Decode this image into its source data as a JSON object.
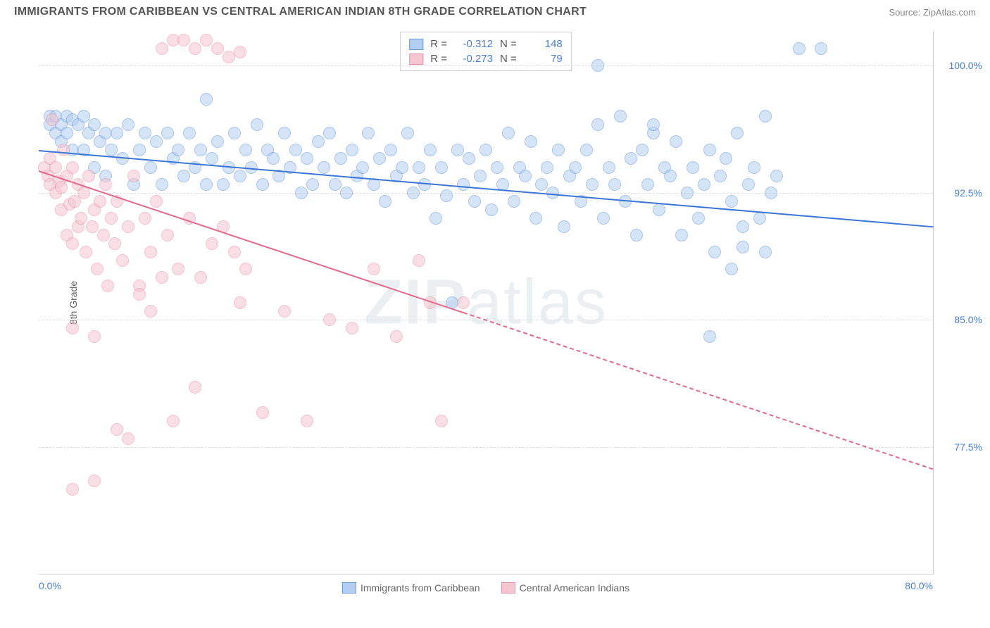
{
  "header": {
    "title": "IMMIGRANTS FROM CARIBBEAN VS CENTRAL AMERICAN INDIAN 8TH GRADE CORRELATION CHART",
    "source": "Source: ZipAtlas.com"
  },
  "chart": {
    "type": "scatter",
    "y_axis_label": "8th Grade",
    "xlim": [
      0,
      80
    ],
    "ylim": [
      70,
      102
    ],
    "x_ticks": [
      {
        "value": 0,
        "label": "0.0%"
      },
      {
        "value": 80,
        "label": "80.0%"
      }
    ],
    "y_ticks": [
      {
        "value": 100,
        "label": "100.0%"
      },
      {
        "value": 92.5,
        "label": "92.5%"
      },
      {
        "value": 85,
        "label": "85.0%"
      },
      {
        "value": 77.5,
        "label": "77.5%"
      }
    ],
    "grid_color": "#dddddd",
    "background_color": "#ffffff",
    "series": [
      {
        "name": "Immigrants from Caribbean",
        "color_fill": "#b3cef0",
        "color_stroke": "#6699dd",
        "trend_color": "#3b76d6",
        "trend_start": {
          "x": 0,
          "y": 95.0
        },
        "trend_end": {
          "x": 80,
          "y": 90.5
        },
        "trend_dashed_after_x": null,
        "stats": {
          "R": "-0.312",
          "N": "148"
        },
        "points": [
          [
            1,
            97
          ],
          [
            1,
            96.5
          ],
          [
            1.5,
            97
          ],
          [
            1.5,
            96
          ],
          [
            2,
            96.5
          ],
          [
            2,
            95.5
          ],
          [
            2.5,
            97
          ],
          [
            2.5,
            96
          ],
          [
            3,
            96.8
          ],
          [
            3,
            95
          ],
          [
            3.5,
            96.5
          ],
          [
            4,
            97
          ],
          [
            4,
            95
          ],
          [
            4.5,
            96
          ],
          [
            5,
            96.5
          ],
          [
            5,
            94
          ],
          [
            5.5,
            95.5
          ],
          [
            6,
            96
          ],
          [
            6,
            93.5
          ],
          [
            6.5,
            95
          ],
          [
            7,
            96
          ],
          [
            7.5,
            94.5
          ],
          [
            8,
            96.5
          ],
          [
            8.5,
            93
          ],
          [
            9,
            95
          ],
          [
            9.5,
            96
          ],
          [
            10,
            94
          ],
          [
            10.5,
            95.5
          ],
          [
            11,
            93
          ],
          [
            11.5,
            96
          ],
          [
            12,
            94.5
          ],
          [
            12.5,
            95
          ],
          [
            13,
            93.5
          ],
          [
            13.5,
            96
          ],
          [
            14,
            94
          ],
          [
            14.5,
            95
          ],
          [
            15,
            98
          ],
          [
            15,
            93
          ],
          [
            15.5,
            94.5
          ],
          [
            16,
            95.5
          ],
          [
            16.5,
            93
          ],
          [
            17,
            94
          ],
          [
            17.5,
            96
          ],
          [
            18,
            93.5
          ],
          [
            18.5,
            95
          ],
          [
            19,
            94
          ],
          [
            19.5,
            96.5
          ],
          [
            20,
            93
          ],
          [
            20.5,
            95
          ],
          [
            21,
            94.5
          ],
          [
            21.5,
            93.5
          ],
          [
            22,
            96
          ],
          [
            22.5,
            94
          ],
          [
            23,
            95
          ],
          [
            23.5,
            92.5
          ],
          [
            24,
            94.5
          ],
          [
            24.5,
            93
          ],
          [
            25,
            95.5
          ],
          [
            25.5,
            94
          ],
          [
            26,
            96
          ],
          [
            26.5,
            93
          ],
          [
            27,
            94.5
          ],
          [
            27.5,
            92.5
          ],
          [
            28,
            95
          ],
          [
            28.5,
            93.5
          ],
          [
            29,
            94
          ],
          [
            29.5,
            96
          ],
          [
            30,
            93
          ],
          [
            30.5,
            94.5
          ],
          [
            31,
            92
          ],
          [
            31.5,
            95
          ],
          [
            32,
            93.5
          ],
          [
            32.5,
            94
          ],
          [
            33,
            96
          ],
          [
            33.5,
            92.5
          ],
          [
            34,
            94
          ],
          [
            34.5,
            93
          ],
          [
            35,
            95
          ],
          [
            35.5,
            91
          ],
          [
            36,
            94
          ],
          [
            36.5,
            92.3
          ],
          [
            37,
            86
          ],
          [
            37.5,
            95
          ],
          [
            38,
            93
          ],
          [
            38.5,
            94.5
          ],
          [
            39,
            92
          ],
          [
            39.5,
            93.5
          ],
          [
            40,
            95
          ],
          [
            40.5,
            91.5
          ],
          [
            41,
            94
          ],
          [
            41.5,
            93
          ],
          [
            42,
            96
          ],
          [
            42.5,
            92
          ],
          [
            43,
            94
          ],
          [
            43.5,
            93.5
          ],
          [
            44,
            95.5
          ],
          [
            44.5,
            91
          ],
          [
            45,
            93
          ],
          [
            45.5,
            94
          ],
          [
            46,
            92.5
          ],
          [
            46.5,
            95
          ],
          [
            47,
            90.5
          ],
          [
            47.5,
            93.5
          ],
          [
            48,
            94
          ],
          [
            48.5,
            92
          ],
          [
            49,
            95
          ],
          [
            49.5,
            93
          ],
          [
            50,
            96.5
          ],
          [
            50.5,
            91
          ],
          [
            51,
            94
          ],
          [
            51.5,
            93
          ],
          [
            52,
            97
          ],
          [
            52.5,
            92
          ],
          [
            53,
            94.5
          ],
          [
            53.5,
            90
          ],
          [
            54,
            95
          ],
          [
            54.5,
            93
          ],
          [
            55,
            96
          ],
          [
            55.5,
            91.5
          ],
          [
            56,
            94
          ],
          [
            56.5,
            93.5
          ],
          [
            57,
            95.5
          ],
          [
            57.5,
            90
          ],
          [
            58,
            92.5
          ],
          [
            58.5,
            94
          ],
          [
            59,
            91
          ],
          [
            59.5,
            93
          ],
          [
            60,
            95
          ],
          [
            60.5,
            89
          ],
          [
            61,
            93.5
          ],
          [
            61.5,
            94.5
          ],
          [
            62,
            92
          ],
          [
            62.5,
            96
          ],
          [
            63,
            90.5
          ],
          [
            63.5,
            93
          ],
          [
            64,
            94
          ],
          [
            64.5,
            91
          ],
          [
            65,
            97
          ],
          [
            65.5,
            92.5
          ],
          [
            66,
            93.5
          ],
          [
            68,
            101
          ],
          [
            70,
            101
          ],
          [
            60,
            84
          ],
          [
            62,
            88
          ],
          [
            65,
            89
          ],
          [
            63,
            89.3
          ],
          [
            55,
            96.5
          ],
          [
            50,
            100
          ]
        ]
      },
      {
        "name": "Central American Indians",
        "color_fill": "#f5c6d1",
        "color_stroke": "#e893a8",
        "trend_color": "#e26a8a",
        "trend_start": {
          "x": 0,
          "y": 93.8
        },
        "trend_end": {
          "x": 80,
          "y": 76.2
        },
        "trend_dashed_after_x": 38,
        "stats": {
          "R": "-0.273",
          "N": "79"
        },
        "points": [
          [
            0.5,
            94
          ],
          [
            0.8,
            93.5
          ],
          [
            1,
            94.5
          ],
          [
            1,
            93
          ],
          [
            1.2,
            96.8
          ],
          [
            1.5,
            92.5
          ],
          [
            1.5,
            94
          ],
          [
            1.8,
            93.2
          ],
          [
            2,
            92.8
          ],
          [
            2,
            91.5
          ],
          [
            2.2,
            95
          ],
          [
            2.5,
            90
          ],
          [
            2.5,
            93.5
          ],
          [
            2.8,
            91.8
          ],
          [
            3,
            94
          ],
          [
            3,
            89.5
          ],
          [
            3.2,
            92
          ],
          [
            3.5,
            93
          ],
          [
            3.5,
            90.5
          ],
          [
            3.8,
            91
          ],
          [
            4,
            92.5
          ],
          [
            4.2,
            89
          ],
          [
            4.5,
            93.5
          ],
          [
            4.8,
            90.5
          ],
          [
            5,
            91.5
          ],
          [
            5.2,
            88
          ],
          [
            5.5,
            92
          ],
          [
            5.8,
            90
          ],
          [
            6,
            93
          ],
          [
            6.2,
            87
          ],
          [
            6.5,
            91
          ],
          [
            6.8,
            89.5
          ],
          [
            7,
            92
          ],
          [
            7.5,
            88.5
          ],
          [
            8,
            90.5
          ],
          [
            8.5,
            93.5
          ],
          [
            9,
            87
          ],
          [
            9.5,
            91
          ],
          [
            10,
            89
          ],
          [
            10.5,
            92
          ],
          [
            11,
            101
          ],
          [
            11.5,
            90
          ],
          [
            12,
            101.5
          ],
          [
            12.5,
            88
          ],
          [
            13,
            101.5
          ],
          [
            13.5,
            91
          ],
          [
            14,
            101
          ],
          [
            14.5,
            87.5
          ],
          [
            15,
            101.5
          ],
          [
            15.5,
            89.5
          ],
          [
            16,
            101
          ],
          [
            16.5,
            90.5
          ],
          [
            17,
            100.5
          ],
          [
            18,
            100.8
          ],
          [
            18.5,
            88
          ],
          [
            17.5,
            89
          ],
          [
            3,
            84.5
          ],
          [
            5,
            84
          ],
          [
            7,
            78.5
          ],
          [
            8,
            78
          ],
          [
            12,
            79
          ],
          [
            10,
            85.5
          ],
          [
            14,
            81
          ],
          [
            18,
            86
          ],
          [
            20,
            79.5
          ],
          [
            22,
            85.5
          ],
          [
            24,
            79
          ],
          [
            26,
            85
          ],
          [
            28,
            84.5
          ],
          [
            30,
            88
          ],
          [
            32,
            84
          ],
          [
            34,
            88.5
          ],
          [
            35,
            86
          ],
          [
            36,
            79
          ],
          [
            38,
            86
          ],
          [
            3,
            75
          ],
          [
            5,
            75.5
          ],
          [
            9,
            86.5
          ],
          [
            11,
            87.5
          ]
        ]
      }
    ],
    "legend": {
      "items": [
        {
          "label": "Immigrants from Caribbean",
          "fill": "#b3cef0",
          "stroke": "#6699dd"
        },
        {
          "label": "Central American Indians",
          "fill": "#f5c6d1",
          "stroke": "#e893a8"
        }
      ]
    },
    "watermark": {
      "part1": "ZIP",
      "part2": "atlas"
    }
  }
}
